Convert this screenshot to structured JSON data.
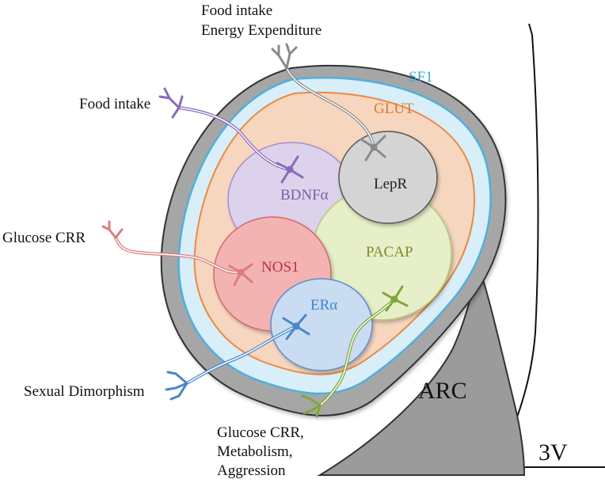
{
  "diagram": {
    "nodes": {
      "sf1": {
        "label": "SF1",
        "color": "#3aa6d6"
      },
      "glut": {
        "label": "GLUT",
        "color": "#e07b28"
      },
      "bdnf": {
        "label": "BDNFα",
        "color": "#7a5ea8"
      },
      "lepr": {
        "label": "LepR",
        "color": "#222222"
      },
      "pacap": {
        "label": "PACAP",
        "color": "#7d8c2a"
      },
      "nos1": {
        "label": "NOS1",
        "color": "#b8323a"
      },
      "era": {
        "label": "ERα",
        "color": "#3a86d0"
      },
      "arc": {
        "label": "ARC",
        "color": "#111111"
      },
      "third_ventricle": {
        "label": "3V",
        "color": "#111111"
      }
    },
    "outputs": {
      "lepr_out": {
        "lines": [
          "Food intake",
          "Energy Expenditure"
        ]
      },
      "bdnf_out": {
        "lines": [
          "Food intake"
        ]
      },
      "nos1_out": {
        "lines": [
          "Glucose CRR"
        ]
      },
      "era_out": {
        "lines": [
          "Sexual Dimorphism"
        ]
      },
      "pacap_out": {
        "lines": [
          "Glucose CRR,",
          "Metabolism,",
          "Aggression"
        ]
      }
    },
    "edges": [
      {
        "from": "lepr",
        "to": "lepr_out"
      },
      {
        "from": "bdnf",
        "to": "bdnf_out"
      },
      {
        "from": "nos1",
        "to": "nos1_out"
      },
      {
        "from": "era",
        "to": "era_out"
      },
      {
        "from": "pacap",
        "to": "pacap_out"
      }
    ]
  }
}
